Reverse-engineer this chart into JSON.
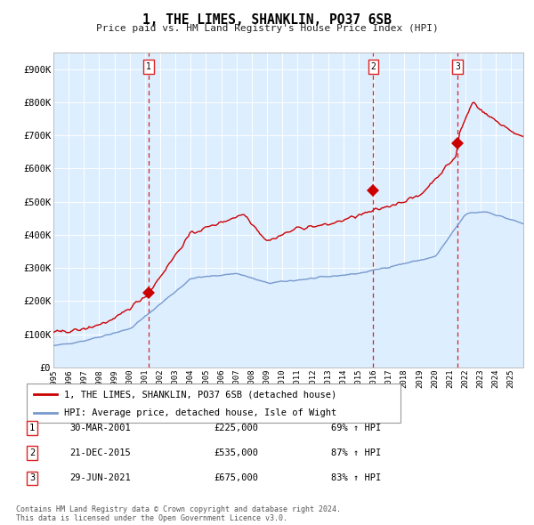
{
  "title": "1, THE LIMES, SHANKLIN, PO37 6SB",
  "subtitle": "Price paid vs. HM Land Registry's House Price Index (HPI)",
  "legend_red": "1, THE LIMES, SHANKLIN, PO37 6SB (detached house)",
  "legend_blue": "HPI: Average price, detached house, Isle of Wight",
  "transactions": [
    {
      "num": 1,
      "date": "30-MAR-2001",
      "price": 225000,
      "hpi_pct": "69% ↑ HPI"
    },
    {
      "num": 2,
      "date": "21-DEC-2015",
      "price": 535000,
      "hpi_pct": "87% ↑ HPI"
    },
    {
      "num": 3,
      "date": "29-JUN-2021",
      "price": 675000,
      "hpi_pct": "83% ↑ HPI"
    }
  ],
  "transaction_dates_decimal": [
    2001.24,
    2015.97,
    2021.49
  ],
  "transaction_prices": [
    225000,
    535000,
    675000
  ],
  "ylabel_vals": [
    0,
    100000,
    200000,
    300000,
    400000,
    500000,
    600000,
    700000,
    800000,
    900000
  ],
  "ylabel_labels": [
    "£0",
    "£100K",
    "£200K",
    "£300K",
    "£400K",
    "£500K",
    "£600K",
    "£700K",
    "£800K",
    "£900K"
  ],
  "xlim_start": 1995.0,
  "xlim_end": 2025.8,
  "ylim_min": 0,
  "ylim_max": 950000,
  "bg_color": "#ddeeff",
  "red_color": "#cc0000",
  "blue_color": "#7799cc",
  "marker_color": "#cc0000",
  "vline_color": "#dd2222",
  "grid_color": "#ffffff",
  "footer": "Contains HM Land Registry data © Crown copyright and database right 2024.\nThis data is licensed under the Open Government Licence v3.0."
}
